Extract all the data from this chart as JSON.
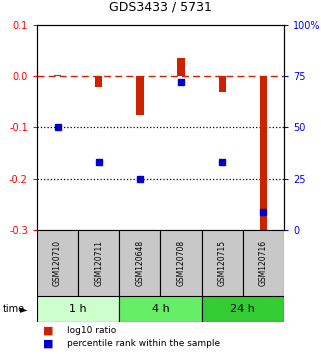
{
  "title": "GDS3433 / 5731",
  "samples": [
    "GSM120710",
    "GSM120711",
    "GSM120648",
    "GSM120708",
    "GSM120715",
    "GSM120716"
  ],
  "log10_ratio": [
    0.002,
    -0.022,
    -0.075,
    0.036,
    -0.03,
    -0.3
  ],
  "percentile_rank": [
    50,
    33,
    25,
    72,
    33,
    9
  ],
  "ylim_left": [
    -0.3,
    0.1
  ],
  "ylim_right": [
    0,
    100
  ],
  "yticks_left": [
    0.1,
    0.0,
    -0.1,
    -0.2,
    -0.3
  ],
  "yticks_right": [
    100,
    75,
    50,
    25,
    0
  ],
  "bar_color": "#cc2200",
  "dot_color": "#0000cc",
  "dashed_line_color": "#cc2200",
  "dotted_line_color": "#000000",
  "header_bg": "#c8c8c8",
  "time_groups": [
    {
      "label": "1 h",
      "start": 0,
      "end": 2,
      "color": "#ccffcc"
    },
    {
      "label": "4 h",
      "start": 2,
      "end": 4,
      "color": "#66ee66"
    },
    {
      "label": "24 h",
      "start": 4,
      "end": 6,
      "color": "#33cc33"
    }
  ],
  "legend_items": [
    "log10 ratio",
    "percentile rank within the sample"
  ],
  "legend_colors": [
    "#cc2200",
    "#0000cc"
  ]
}
